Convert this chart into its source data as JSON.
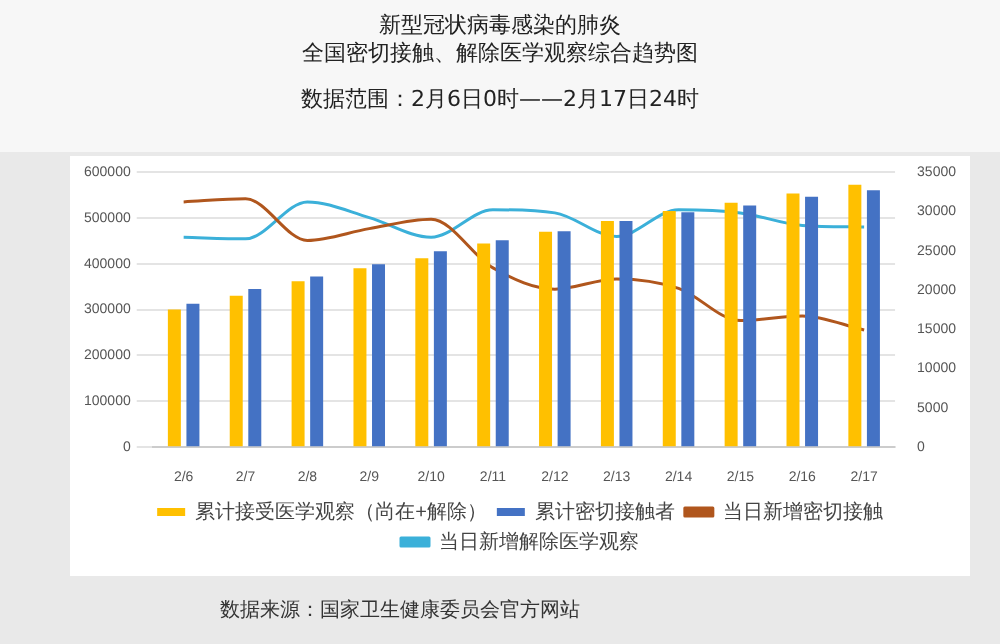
{
  "chart_data": {
    "type": "bar",
    "title": "新型冠状病毒感染的肺炎",
    "subtitle": "全国密切接触、解除医学观察综合趋势图",
    "categories": [
      "2/6",
      "2/7",
      "2/8",
      "2/9",
      "2/10",
      "2/11",
      "2/12",
      "2/13",
      "2/14",
      "2/15",
      "2/16",
      "2/17"
    ],
    "series": [
      {
        "name": "累计接受医学观察（尚在+解除）",
        "color": "#ffc000",
        "values": [
          300000,
          330000,
          362000,
          390000,
          412000,
          444000,
          470000,
          493000,
          515000,
          533000,
          553000,
          572000
        ]
      },
      {
        "name": "累计密切接触者",
        "color": "#4472c4",
        "values": [
          313000,
          345000,
          372000,
          399000,
          427000,
          451000,
          471000,
          493000,
          512000,
          527000,
          546000,
          560000
        ]
      },
      {
        "name": "当日新增密切接触",
        "type": "line",
        "axis": "y2",
        "color": "#b0561d",
        "values": [
          31200,
          31600,
          26300,
          27800,
          29000,
          22800,
          20100,
          21400,
          20200,
          16100,
          16700,
          14900
        ]
      },
      {
        "name": "当日新增解除医学观察",
        "type": "line",
        "axis": "y2",
        "color": "#3bb0d9",
        "values": [
          26700,
          26500,
          31200,
          29200,
          26700,
          30200,
          29800,
          26800,
          30200,
          29800,
          28200,
          28000
        ]
      }
    ],
    "ylim": [
      0,
      600000
    ],
    "yticks": [
      0,
      100000,
      200000,
      300000,
      400000,
      500000,
      600000
    ],
    "y2lim": [
      0,
      35000
    ],
    "y2ticks": [
      0,
      5000,
      10000,
      15000,
      20000,
      25000,
      30000,
      35000
    ],
    "grid": "y",
    "legend": "bottom",
    "marker": "none",
    "line_style": "solid",
    "annotations": [
      "数据范围：2月6日0时——2月17日24时",
      "数据来源：国家卫生健康委员会官方网站"
    ]
  }
}
